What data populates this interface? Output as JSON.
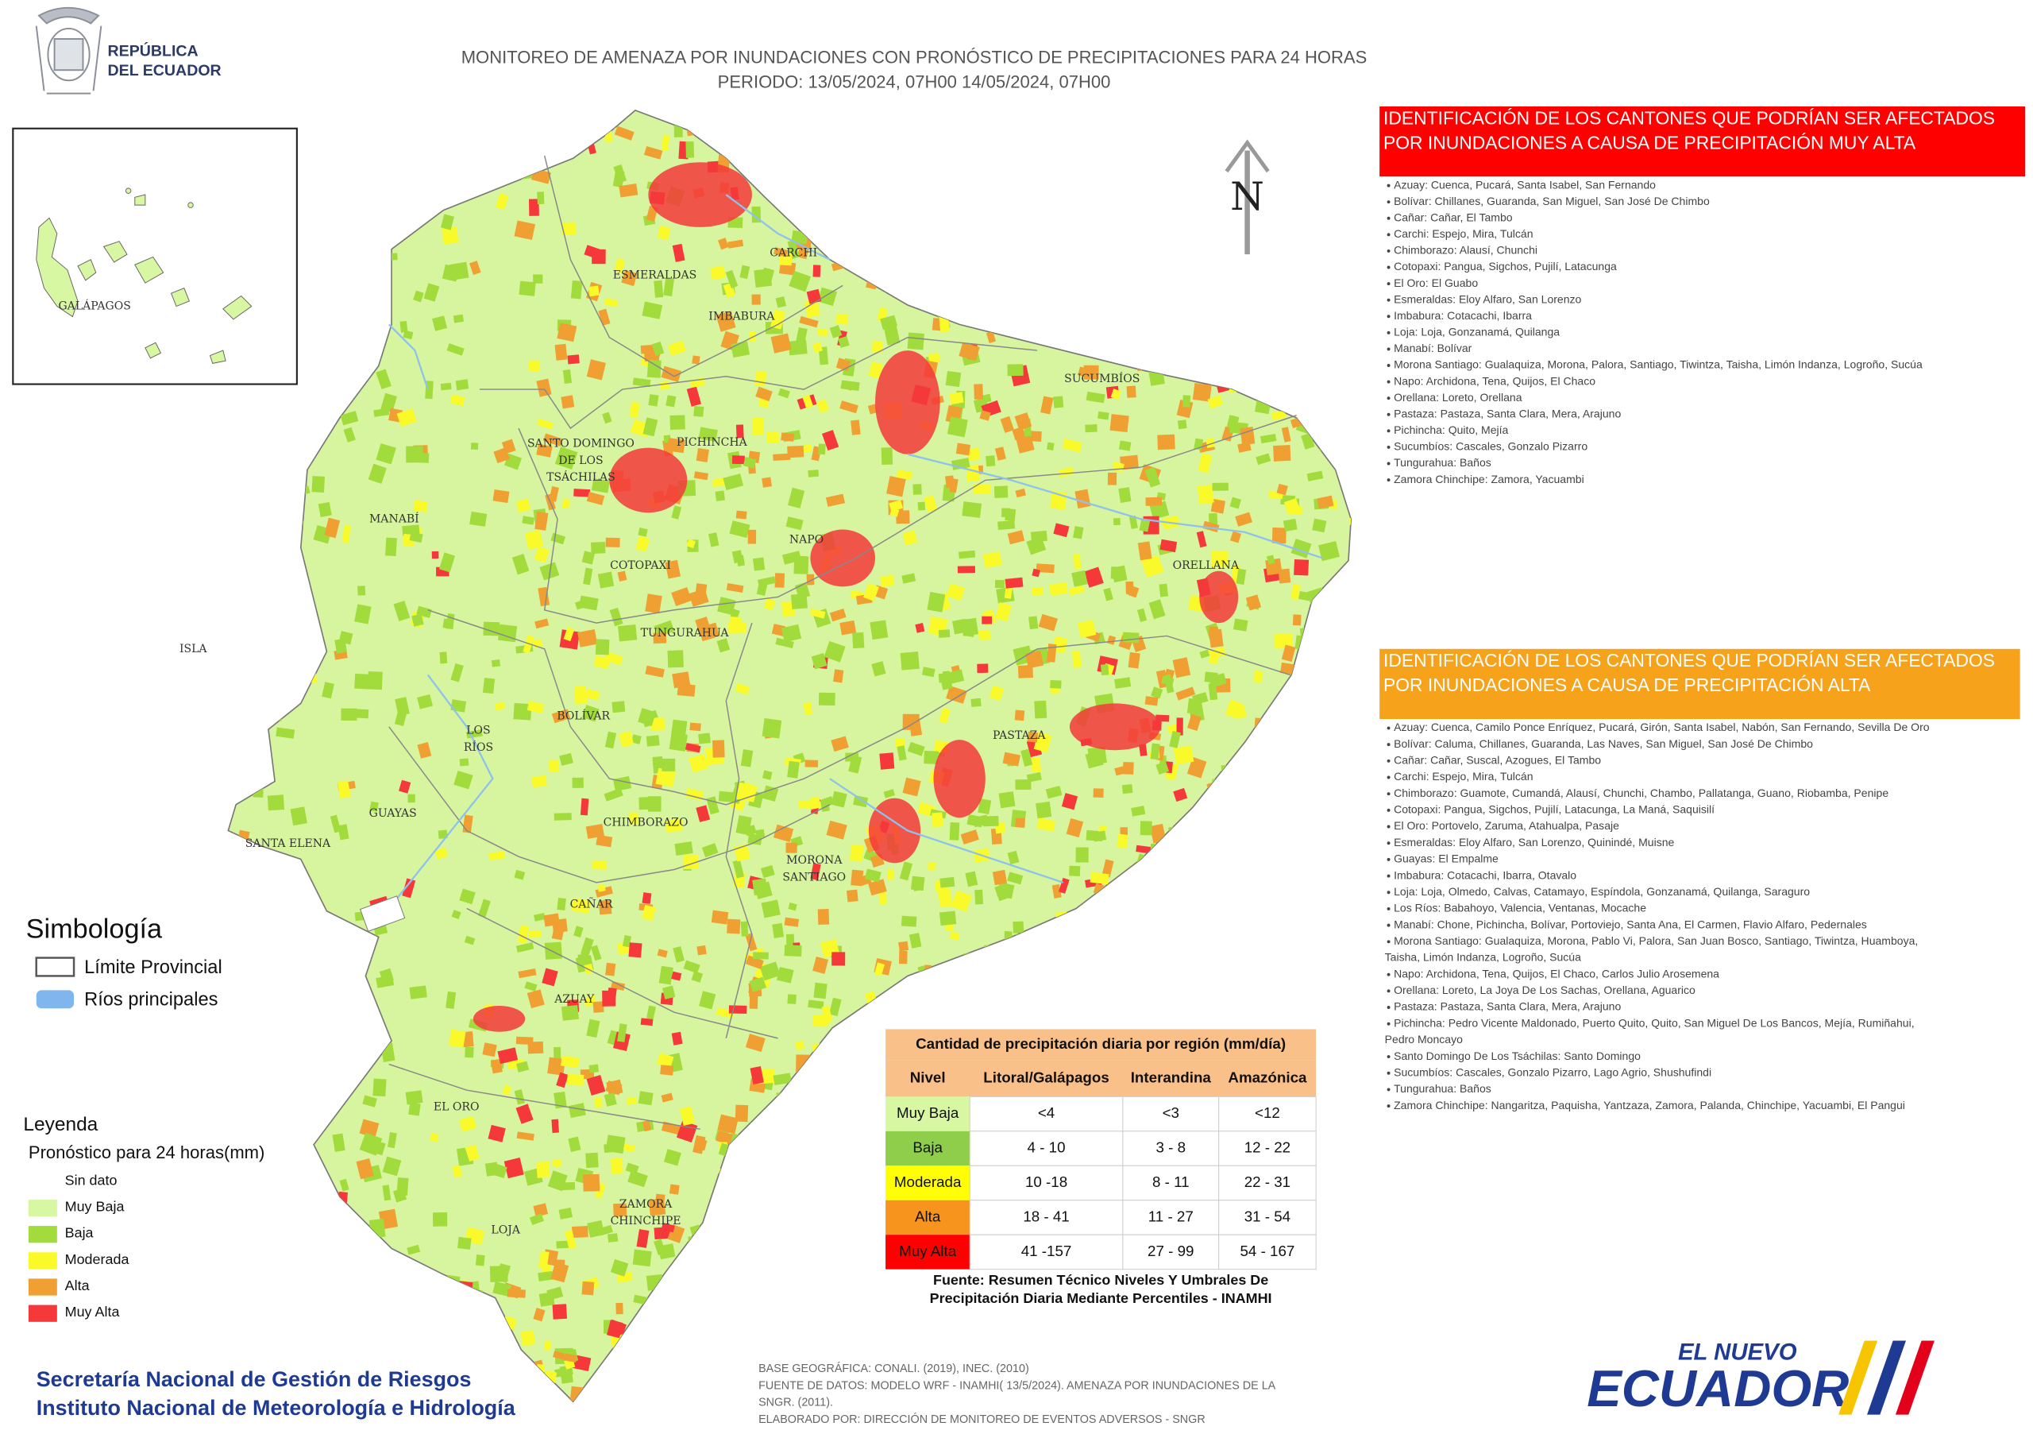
{
  "header": {
    "logo_lines": [
      "REPÚBLICA",
      "DEL ECUADOR"
    ],
    "title": "MONITOREO DE AMENAZA POR INUNDACIONES  CON PRONÓSTICO DE  PRECIPITACIONES PARA 24 HORAS",
    "period": "PERIODO: 13/05/2024, 07H00 14/05/2024, 07H00"
  },
  "map": {
    "inset_label": "GALÁPAGOS",
    "north": "N",
    "provinces": [
      [
        "ESMERALDAS"
      ],
      [
        "CARCHI"
      ],
      [
        "IMBABURA"
      ],
      [
        "SUCUMBÍOS"
      ],
      [
        "SANTO DOMINGO",
        "DE LOS",
        "TSÁCHILAS"
      ],
      [
        "PICHINCHA"
      ],
      [
        "MANABÍ"
      ],
      [
        "NAPO"
      ],
      [
        "ORELLANA"
      ],
      [
        "COTOPAXI"
      ],
      [
        "TUNGURAHUA"
      ],
      [
        "ISLA"
      ],
      [
        "BOLÍVAR"
      ],
      [
        "LOS",
        "RÍOS"
      ],
      [
        "PASTAZA"
      ],
      [
        "GUAYAS"
      ],
      [
        "CHIMBORAZO"
      ],
      [
        "SANTA ELENA"
      ],
      [
        "MORONA",
        "SANTIAGO"
      ],
      [
        "CAÑAR"
      ],
      [
        "AZUAY"
      ],
      [
        "EL ORO"
      ],
      [
        "ZAMORA",
        "CHINCHIPE"
      ],
      [
        "LOJA"
      ]
    ]
  },
  "lists": [
    {
      "title": [
        "IDENTIFICACIÓN DE LOS CANTONES QUE PODRÍAN SER AFECTADOS",
        "POR INUNDACIONES  A CAUSA DE PRECIPITACIÓN MUY ALTA"
      ],
      "color": "#ff0000",
      "items": [
        [
          "Azuay: Cuenca, Pucará, Santa Isabel, San Fernando"
        ],
        [
          "Bolívar: Chillanes, Guaranda, San Miguel, San José De Chimbo"
        ],
        [
          "Cañar: Cañar, El Tambo"
        ],
        [
          "Carchi: Espejo, Mira, Tulcán"
        ],
        [
          "Chimborazo: Alausí, Chunchi"
        ],
        [
          "Cotopaxi: Pangua, Sigchos, Pujilí, Latacunga"
        ],
        [
          "El Oro: El Guabo"
        ],
        [
          "Esmeraldas: Eloy Alfaro, San Lorenzo"
        ],
        [
          "Imbabura: Cotacachi, Ibarra"
        ],
        [
          "Loja: Loja, Gonzanamá, Quilanga"
        ],
        [
          "Manabí: Bolívar"
        ],
        [
          "Morona Santiago: Gualaquiza, Morona, Palora, Santiago, Tiwintza, Taisha, Limón Indanza, Logroño, Sucúa"
        ],
        [
          "Napo: Archidona, Tena, Quijos, El Chaco"
        ],
        [
          "Orellana: Loreto, Orellana"
        ],
        [
          "Pastaza: Pastaza, Santa Clara, Mera, Arajuno"
        ],
        [
          "Pichincha: Quito, Mejía"
        ],
        [
          "Sucumbíos: Cascales, Gonzalo Pizarro"
        ],
        [
          "Tungurahua: Baños"
        ],
        [
          "Zamora Chinchipe: Zamora, Yacuambi"
        ]
      ]
    },
    {
      "title": [
        "IDENTIFICACIÓN DE LOS CANTONES QUE  PODRÍAN SER AFECTADOS",
        "POR INUNDACIONES  A CAUSA DE PRECIPITACIÓN  ALTA"
      ],
      "color": "#f7a21b",
      "items": [
        [
          "Azuay: Cuenca, Camilo Ponce Enríquez, Pucará, Girón, Santa Isabel, Nabón, San Fernando, Sevilla De Oro"
        ],
        [
          "Bolívar: Caluma, Chillanes, Guaranda, Las Naves, San Miguel, San José De Chimbo"
        ],
        [
          "Cañar: Cañar, Suscal, Azogues, El Tambo"
        ],
        [
          "Carchi: Espejo, Mira, Tulcán"
        ],
        [
          "Chimborazo: Guamote, Cumandá, Alausí, Chunchi, Chambo, Pallatanga, Guano, Riobamba, Penipe"
        ],
        [
          "Cotopaxi: Pangua, Sigchos, Pujilí, Latacunga, La Maná, Saquisilí"
        ],
        [
          "El Oro: Portovelo, Zaruma, Atahualpa, Pasaje"
        ],
        [
          "Esmeraldas: Eloy Alfaro, San Lorenzo, Quinindé, Muisne"
        ],
        [
          "Guayas: El Empalme"
        ],
        [
          "Imbabura: Cotacachi, Ibarra, Otavalo"
        ],
        [
          "Loja: Loja, Olmedo, Calvas, Catamayo, Espíndola, Gonzanamá, Quilanga, Saraguro"
        ],
        [
          "Los Ríos: Babahoyo, Valencia, Ventanas, Mocache"
        ],
        [
          "Manabí: Chone, Pichincha, Bolívar, Portoviejo, Santa Ana, El Carmen, Flavio Alfaro, Pedernales"
        ],
        [
          "Morona Santiago: Gualaquiza, Morona, Pablo Vi, Palora, San Juan Bosco, Santiago, Tiwintza, Huamboya,",
          "Taisha, Limón Indanza, Logroño, Sucúa"
        ],
        [
          "Napo: Archidona, Tena, Quijos, El Chaco, Carlos Julio Arosemena"
        ],
        [
          "Orellana: Loreto, La Joya De Los Sachas, Orellana, Aguarico"
        ],
        [
          "Pastaza: Pastaza, Santa Clara, Mera, Arajuno"
        ],
        [
          "Pichincha: Pedro Vicente Maldonado, Puerto Quito, Quito, San Miguel De Los Bancos, Mejía, Rumiñahui,",
          "Pedro Moncayo"
        ],
        [
          "Santo Domingo De Los Tsáchilas: Santo Domingo"
        ],
        [
          "Sucumbíos: Cascales, Gonzalo Pizarro, Lago Agrio, Shushufindi"
        ],
        [
          "Tungurahua: Baños"
        ],
        [
          "Zamora Chinchipe: Nangaritza, Paquisha, Yantzaza, Zamora, Palanda, Chinchipe, Yacuambi, El Pangui"
        ]
      ]
    }
  ],
  "symbology": {
    "title": "Simbología",
    "items": [
      "Límite Provincial",
      "Ríos principales"
    ]
  },
  "legend": {
    "title": "Leyenda",
    "subtitle": "Pronóstico para 24 horas(mm)",
    "items": [
      {
        "label": "Sin dato",
        "color": "#ffffff"
      },
      {
        "label": "Muy Baja",
        "color": "#d8f7a3"
      },
      {
        "label": "Baja",
        "color": "#a2db3c"
      },
      {
        "label": "Moderada",
        "color": "#fafa2a"
      },
      {
        "label": "Alta",
        "color": "#f0a033"
      },
      {
        "label": "Muy Alta",
        "color": "#f5383a"
      }
    ]
  },
  "table": {
    "title": "Cantidad de precipitación diaria por región (mm/día)",
    "header": [
      "Nivel",
      "Litoral/Galápagos",
      "Interandina",
      "Amazónica"
    ],
    "rows": [
      [
        "Muy Baja",
        "<4",
        "<3",
        "<12"
      ],
      [
        "Baja",
        "4 - 10",
        "3 - 8",
        "12 - 22"
      ],
      [
        "Moderada",
        "10 -18",
        "8 - 11",
        "22 - 31"
      ],
      [
        "Alta",
        "18 - 41",
        "11 - 27",
        "31 - 54"
      ],
      [
        "Muy Alta",
        "41 -157",
        "27 - 99",
        "54 - 167"
      ]
    ],
    "level_colors": [
      "#d8f7a3",
      "#8fce4a",
      "#ffff00",
      "#f7941d",
      "#ff0000"
    ],
    "source": [
      "Fuente: Resumen Técnico Niveles Y Umbrales De",
      "Precipitación Diaria Mediante Percentiles - INAMHI"
    ]
  },
  "footer": {
    "institutions": [
      "Secretaría Nacional de Gestión de Riesgos",
      "Instituto Nacional de Meteorología e Hidrología"
    ],
    "notes": [
      "BASE GEOGRÁFICA: CONALI. (2019), INEC. (2010)",
      "FUENTE DE DATOS: MODELO WRF - INAMHI( 13/5/2024).  AMENAZA POR INUNDACIONES DE LA",
      "SNGR. (2011).",
      "ELABORADO POR: DIRECCIÓN DE MONITOREO DE EVENTOS ADVERSOS - SNGR"
    ],
    "brand": [
      "EL NUEVO",
      "ECUADOR"
    ]
  }
}
